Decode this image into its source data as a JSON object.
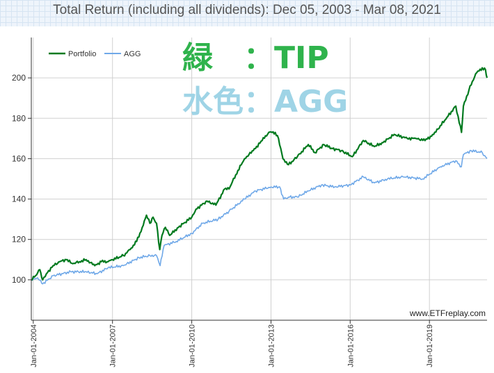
{
  "chart_data": {
    "type": "line",
    "title": "Total Return (including all dividends): Dec 05, 2003 - Mar 08, 2021",
    "xlabel": "",
    "ylabel": "",
    "xlim": [
      "2003-12-05",
      "2021-03-08"
    ],
    "ylim": [
      80,
      220
    ],
    "y_ticks": [
      100,
      120,
      140,
      160,
      180,
      200
    ],
    "x_ticks": [
      "Jan-01-2004",
      "Jan-01-2007",
      "Jan-01-2010",
      "Jan-01-2013",
      "Jan-01-2016",
      "Jan-01-2019"
    ],
    "grid": true,
    "legend_position": "top-left",
    "watermark": "www.ETFreplay.com",
    "annotations": [
      "緑　：TIP",
      "水色：AGG"
    ],
    "series": [
      {
        "name": "Portfolio",
        "color": "#007a1f",
        "points": [
          [
            "2003-12-05",
            100
          ],
          [
            "2004-02-01",
            102
          ],
          [
            "2004-04-01",
            105
          ],
          [
            "2004-05-10",
            100
          ],
          [
            "2004-07-01",
            103
          ],
          [
            "2004-10-01",
            107
          ],
          [
            "2005-01-01",
            109
          ],
          [
            "2005-04-01",
            110
          ],
          [
            "2005-07-01",
            108
          ],
          [
            "2005-10-01",
            109
          ],
          [
            "2006-01-01",
            110
          ],
          [
            "2006-05-01",
            107
          ],
          [
            "2006-08-01",
            109
          ],
          [
            "2006-11-01",
            109
          ],
          [
            "2007-01-01",
            110
          ],
          [
            "2007-06-01",
            112
          ],
          [
            "2007-09-01",
            115
          ],
          [
            "2007-12-01",
            119
          ],
          [
            "2008-03-01",
            127
          ],
          [
            "2008-04-15",
            132
          ],
          [
            "2008-06-01",
            128
          ],
          [
            "2008-07-15",
            131
          ],
          [
            "2008-09-01",
            128
          ],
          [
            "2008-10-15",
            115
          ],
          [
            "2008-11-15",
            122
          ],
          [
            "2009-01-01",
            126
          ],
          [
            "2009-03-01",
            122
          ],
          [
            "2009-07-01",
            126
          ],
          [
            "2010-01-01",
            131
          ],
          [
            "2010-03-01",
            135
          ],
          [
            "2010-08-01",
            139
          ],
          [
            "2010-12-01",
            137
          ],
          [
            "2011-04-01",
            145
          ],
          [
            "2011-06-01",
            145
          ],
          [
            "2011-09-01",
            152
          ],
          [
            "2012-01-01",
            160
          ],
          [
            "2012-05-01",
            164
          ],
          [
            "2012-09-01",
            169
          ],
          [
            "2012-12-01",
            173
          ],
          [
            "2013-03-01",
            173
          ],
          [
            "2013-04-15",
            170
          ],
          [
            "2013-06-15",
            160
          ],
          [
            "2013-09-01",
            157
          ],
          [
            "2014-01-01",
            161
          ],
          [
            "2014-06-01",
            167
          ],
          [
            "2014-09-01",
            163
          ],
          [
            "2015-01-01",
            167
          ],
          [
            "2015-05-01",
            165
          ],
          [
            "2015-09-01",
            164
          ],
          [
            "2016-02-01",
            161
          ],
          [
            "2016-07-01",
            169
          ],
          [
            "2016-12-01",
            166
          ],
          [
            "2017-04-01",
            168
          ],
          [
            "2017-09-01",
            172
          ],
          [
            "2018-03-01",
            170
          ],
          [
            "2018-07-01",
            170
          ],
          [
            "2018-11-01",
            169
          ],
          [
            "2019-03-01",
            172
          ],
          [
            "2019-08-01",
            179
          ],
          [
            "2020-01-01",
            186
          ],
          [
            "2020-03-20",
            173
          ],
          [
            "2020-04-15",
            186
          ],
          [
            "2020-07-01",
            194
          ],
          [
            "2020-10-01",
            202
          ],
          [
            "2021-01-01",
            205
          ],
          [
            "2021-02-15",
            204
          ],
          [
            "2021-03-08",
            200
          ]
        ]
      },
      {
        "name": "AGG",
        "color": "#6fa8e8",
        "points": [
          [
            "2003-12-05",
            100
          ],
          [
            "2004-03-01",
            101
          ],
          [
            "2004-05-10",
            98
          ],
          [
            "2004-10-01",
            102
          ],
          [
            "2005-06-01",
            104
          ],
          [
            "2006-01-01",
            104
          ],
          [
            "2006-06-01",
            103
          ],
          [
            "2006-11-01",
            106
          ],
          [
            "2007-06-01",
            107
          ],
          [
            "2008-01-01",
            111
          ],
          [
            "2008-06-01",
            112
          ],
          [
            "2008-09-01",
            112
          ],
          [
            "2008-10-20",
            107
          ],
          [
            "2008-12-15",
            117
          ],
          [
            "2009-06-01",
            119
          ],
          [
            "2010-01-01",
            123
          ],
          [
            "2010-06-01",
            128
          ],
          [
            "2011-01-01",
            130
          ],
          [
            "2011-06-01",
            134
          ],
          [
            "2012-01-01",
            140
          ],
          [
            "2012-06-01",
            144
          ],
          [
            "2013-01-01",
            146
          ],
          [
            "2013-05-01",
            146
          ],
          [
            "2013-06-25",
            140
          ],
          [
            "2013-09-01",
            141
          ],
          [
            "2014-01-01",
            141
          ],
          [
            "2014-06-01",
            144
          ],
          [
            "2014-12-01",
            147
          ],
          [
            "2015-06-01",
            146
          ],
          [
            "2016-01-01",
            147
          ],
          [
            "2016-07-01",
            151
          ],
          [
            "2016-12-01",
            148
          ],
          [
            "2017-06-01",
            150
          ],
          [
            "2018-01-01",
            151
          ],
          [
            "2018-10-01",
            150
          ],
          [
            "2019-06-01",
            156
          ],
          [
            "2020-01-01",
            159
          ],
          [
            "2020-03-18",
            156
          ],
          [
            "2020-04-15",
            162
          ],
          [
            "2020-08-01",
            164
          ],
          [
            "2021-01-01",
            163
          ],
          [
            "2021-03-08",
            160
          ]
        ]
      }
    ]
  }
}
